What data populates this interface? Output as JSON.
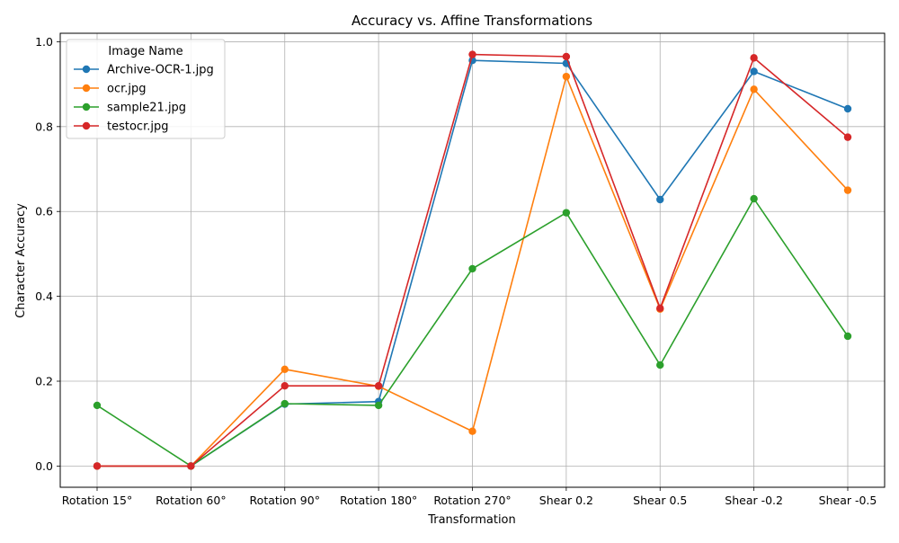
{
  "chart_data": {
    "type": "line",
    "title": "Accuracy vs. Affine Transformations",
    "xlabel": "Transformation",
    "ylabel": "Character Accuracy",
    "categories": [
      "Rotation 15°",
      "Rotation 60°",
      "Rotation 90°",
      "Rotation 180°",
      "Rotation 270°",
      "Shear 0.2",
      "Shear 0.5",
      "Shear -0.2",
      "Shear -0.5"
    ],
    "ylim": [
      -0.05,
      1.02
    ],
    "yticks": [
      "0.0",
      "0.2",
      "0.4",
      "0.6",
      "0.8",
      "1.0"
    ],
    "grid": true,
    "legend": {
      "title": "Image Name",
      "placement": "top-left"
    },
    "series": [
      {
        "name": "Archive-OCR-1.jpg",
        "color": "#1f77b4",
        "values": [
          0.0,
          0.0,
          0.146,
          0.152,
          0.956,
          0.949,
          0.628,
          0.93,
          0.842
        ]
      },
      {
        "name": "ocr.jpg",
        "color": "#ff7f0e",
        "values": [
          0.0,
          0.0,
          0.228,
          0.188,
          0.082,
          0.918,
          0.37,
          0.888,
          0.65
        ]
      },
      {
        "name": "sample21.jpg",
        "color": "#2ca02c",
        "values": [
          0.143,
          0.0,
          0.147,
          0.143,
          0.465,
          0.597,
          0.238,
          0.63,
          0.306
        ]
      },
      {
        "name": "testocr.jpg",
        "color": "#d62728",
        "values": [
          0.0,
          0.0,
          0.189,
          0.189,
          0.97,
          0.965,
          0.372,
          0.962,
          0.775
        ]
      }
    ]
  }
}
